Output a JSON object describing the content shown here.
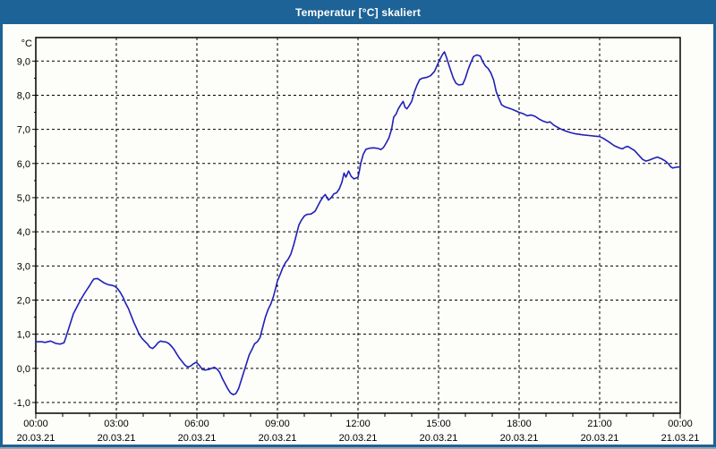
{
  "window": {
    "title": "Temperatur [°C] skaliert",
    "colors": {
      "titlebar": "#1d6397",
      "border": "#1d6397",
      "client_bg": "#fdfdfa",
      "title_text": "#ffffff"
    }
  },
  "chart_data": {
    "type": "line",
    "title": "Temperatur [°C] skaliert",
    "ylabel": "°C",
    "xlabel": "",
    "grid": {
      "style": "dashed",
      "color": "#000000",
      "shown": true
    },
    "legend": {
      "shown": false
    },
    "x_axis": {
      "range_hours": [
        0,
        24
      ],
      "major_step_hours": 3,
      "minor_step_hours": 1,
      "ticks": [
        {
          "hour": 0,
          "time": "00:00",
          "date": "20.03.21"
        },
        {
          "hour": 3,
          "time": "03:00",
          "date": "20.03.21"
        },
        {
          "hour": 6,
          "time": "06:00",
          "date": "20.03.21"
        },
        {
          "hour": 9,
          "time": "09:00",
          "date": "20.03.21"
        },
        {
          "hour": 12,
          "time": "12:00",
          "date": "20.03.21"
        },
        {
          "hour": 15,
          "time": "15:00",
          "date": "20.03.21"
        },
        {
          "hour": 18,
          "time": "18:00",
          "date": "20.03.21"
        },
        {
          "hour": 21,
          "time": "21:00",
          "date": "20.03.21"
        },
        {
          "hour": 24,
          "time": "00:00",
          "date": "21.03.21"
        }
      ]
    },
    "y_axis": {
      "range": [
        -1.31,
        9.69
      ],
      "minor_step": 0.5,
      "ticks": [
        {
          "value": 9,
          "label": "9,0"
        },
        {
          "value": 8,
          "label": "8,0"
        },
        {
          "value": 7,
          "label": "7,0"
        },
        {
          "value": 6,
          "label": "6,0"
        },
        {
          "value": 5,
          "label": "5,0"
        },
        {
          "value": 4,
          "label": "4,0"
        },
        {
          "value": 3,
          "label": "3,0"
        },
        {
          "value": 2,
          "label": "2,0"
        },
        {
          "value": 1,
          "label": "1,0"
        },
        {
          "value": 0,
          "label": "0,0"
        },
        {
          "value": -1,
          "label": "-1,0"
        }
      ]
    },
    "series": [
      {
        "name": "Temperatur [°C]",
        "color": "#2020b8",
        "points": [
          [
            0.0,
            0.78
          ],
          [
            0.2,
            0.78
          ],
          [
            0.35,
            0.76
          ],
          [
            0.55,
            0.8
          ],
          [
            0.75,
            0.73
          ],
          [
            0.9,
            0.71
          ],
          [
            1.05,
            0.75
          ],
          [
            1.1,
            0.86
          ],
          [
            1.2,
            1.1
          ],
          [
            1.3,
            1.35
          ],
          [
            1.4,
            1.6
          ],
          [
            1.5,
            1.75
          ],
          [
            1.6,
            1.9
          ],
          [
            1.7,
            2.05
          ],
          [
            1.8,
            2.18
          ],
          [
            1.9,
            2.3
          ],
          [
            2.0,
            2.42
          ],
          [
            2.1,
            2.55
          ],
          [
            2.17,
            2.62
          ],
          [
            2.3,
            2.63
          ],
          [
            2.4,
            2.58
          ],
          [
            2.55,
            2.5
          ],
          [
            2.7,
            2.45
          ],
          [
            2.85,
            2.43
          ],
          [
            2.95,
            2.4
          ],
          [
            3.05,
            2.33
          ],
          [
            3.15,
            2.22
          ],
          [
            3.25,
            2.08
          ],
          [
            3.35,
            1.9
          ],
          [
            3.45,
            1.75
          ],
          [
            3.55,
            1.55
          ],
          [
            3.65,
            1.35
          ],
          [
            3.75,
            1.18
          ],
          [
            3.85,
            1.0
          ],
          [
            3.95,
            0.88
          ],
          [
            4.05,
            0.8
          ],
          [
            4.15,
            0.72
          ],
          [
            4.25,
            0.62
          ],
          [
            4.35,
            0.58
          ],
          [
            4.45,
            0.65
          ],
          [
            4.55,
            0.75
          ],
          [
            4.65,
            0.8
          ],
          [
            4.75,
            0.78
          ],
          [
            4.85,
            0.77
          ],
          [
            4.95,
            0.73
          ],
          [
            5.05,
            0.65
          ],
          [
            5.15,
            0.55
          ],
          [
            5.25,
            0.42
          ],
          [
            5.35,
            0.3
          ],
          [
            5.45,
            0.2
          ],
          [
            5.55,
            0.1
          ],
          [
            5.65,
            0.04
          ],
          [
            5.75,
            0.06
          ],
          [
            5.85,
            0.12
          ],
          [
            5.95,
            0.17
          ],
          [
            6.0,
            0.16
          ],
          [
            6.1,
            0.08
          ],
          [
            6.2,
            -0.03
          ],
          [
            6.3,
            -0.05
          ],
          [
            6.45,
            -0.03
          ],
          [
            6.55,
            0.0
          ],
          [
            6.65,
            0.03
          ],
          [
            6.75,
            -0.02
          ],
          [
            6.85,
            -0.12
          ],
          [
            6.95,
            -0.3
          ],
          [
            7.05,
            -0.45
          ],
          [
            7.15,
            -0.6
          ],
          [
            7.25,
            -0.72
          ],
          [
            7.35,
            -0.77
          ],
          [
            7.45,
            -0.74
          ],
          [
            7.55,
            -0.6
          ],
          [
            7.65,
            -0.35
          ],
          [
            7.75,
            -0.1
          ],
          [
            7.85,
            0.15
          ],
          [
            7.95,
            0.4
          ],
          [
            8.05,
            0.55
          ],
          [
            8.15,
            0.72
          ],
          [
            8.25,
            0.78
          ],
          [
            8.35,
            0.9
          ],
          [
            8.45,
            1.2
          ],
          [
            8.55,
            1.5
          ],
          [
            8.65,
            1.72
          ],
          [
            8.75,
            1.88
          ],
          [
            8.85,
            2.1
          ],
          [
            8.95,
            2.4
          ],
          [
            9.0,
            2.56
          ],
          [
            9.1,
            2.75
          ],
          [
            9.2,
            2.95
          ],
          [
            9.3,
            3.1
          ],
          [
            9.4,
            3.2
          ],
          [
            9.5,
            3.35
          ],
          [
            9.6,
            3.6
          ],
          [
            9.7,
            3.9
          ],
          [
            9.8,
            4.2
          ],
          [
            9.9,
            4.35
          ],
          [
            10.0,
            4.46
          ],
          [
            10.1,
            4.51
          ],
          [
            10.25,
            4.52
          ],
          [
            10.4,
            4.6
          ],
          [
            10.5,
            4.75
          ],
          [
            10.6,
            4.9
          ],
          [
            10.7,
            5.02
          ],
          [
            10.78,
            5.09
          ],
          [
            10.9,
            4.93
          ],
          [
            11.0,
            5.0
          ],
          [
            11.1,
            5.11
          ],
          [
            11.2,
            5.14
          ],
          [
            11.3,
            5.25
          ],
          [
            11.4,
            5.45
          ],
          [
            11.48,
            5.72
          ],
          [
            11.55,
            5.6
          ],
          [
            11.65,
            5.78
          ],
          [
            11.75,
            5.62
          ],
          [
            11.85,
            5.55
          ],
          [
            11.95,
            5.58
          ],
          [
            12.0,
            5.6
          ],
          [
            12.05,
            5.78
          ],
          [
            12.1,
            6.0
          ],
          [
            12.2,
            6.28
          ],
          [
            12.3,
            6.42
          ],
          [
            12.45,
            6.45
          ],
          [
            12.6,
            6.46
          ],
          [
            12.75,
            6.44
          ],
          [
            12.85,
            6.41
          ],
          [
            12.95,
            6.47
          ],
          [
            13.05,
            6.6
          ],
          [
            13.15,
            6.75
          ],
          [
            13.25,
            7.0
          ],
          [
            13.33,
            7.36
          ],
          [
            13.42,
            7.45
          ],
          [
            13.5,
            7.6
          ],
          [
            13.6,
            7.73
          ],
          [
            13.68,
            7.82
          ],
          [
            13.75,
            7.65
          ],
          [
            13.82,
            7.6
          ],
          [
            13.9,
            7.69
          ],
          [
            14.0,
            7.82
          ],
          [
            14.1,
            8.1
          ],
          [
            14.2,
            8.3
          ],
          [
            14.3,
            8.46
          ],
          [
            14.4,
            8.5
          ],
          [
            14.55,
            8.52
          ],
          [
            14.7,
            8.57
          ],
          [
            14.85,
            8.7
          ],
          [
            14.95,
            8.88
          ],
          [
            15.05,
            9.05
          ],
          [
            15.15,
            9.2
          ],
          [
            15.22,
            9.27
          ],
          [
            15.3,
            9.1
          ],
          [
            15.42,
            8.8
          ],
          [
            15.55,
            8.5
          ],
          [
            15.65,
            8.35
          ],
          [
            15.75,
            8.3
          ],
          [
            15.9,
            8.32
          ],
          [
            16.0,
            8.5
          ],
          [
            16.1,
            8.75
          ],
          [
            16.2,
            8.95
          ],
          [
            16.3,
            9.13
          ],
          [
            16.42,
            9.18
          ],
          [
            16.55,
            9.15
          ],
          [
            16.65,
            8.98
          ],
          [
            16.75,
            8.85
          ],
          [
            16.85,
            8.78
          ],
          [
            16.95,
            8.65
          ],
          [
            17.05,
            8.45
          ],
          [
            17.15,
            8.1
          ],
          [
            17.25,
            7.9
          ],
          [
            17.35,
            7.72
          ],
          [
            17.45,
            7.67
          ],
          [
            17.55,
            7.64
          ],
          [
            17.7,
            7.6
          ],
          [
            17.85,
            7.55
          ],
          [
            18.0,
            7.5
          ],
          [
            18.15,
            7.46
          ],
          [
            18.3,
            7.4
          ],
          [
            18.45,
            7.42
          ],
          [
            18.6,
            7.38
          ],
          [
            18.75,
            7.3
          ],
          [
            18.9,
            7.24
          ],
          [
            19.05,
            7.2
          ],
          [
            19.15,
            7.22
          ],
          [
            19.3,
            7.12
          ],
          [
            19.5,
            7.03
          ],
          [
            19.7,
            6.96
          ],
          [
            19.9,
            6.91
          ],
          [
            20.1,
            6.87
          ],
          [
            20.35,
            6.84
          ],
          [
            20.6,
            6.82
          ],
          [
            20.85,
            6.8
          ],
          [
            21.0,
            6.79
          ],
          [
            21.15,
            6.73
          ],
          [
            21.35,
            6.63
          ],
          [
            21.55,
            6.52
          ],
          [
            21.75,
            6.45
          ],
          [
            21.85,
            6.43
          ],
          [
            21.95,
            6.48
          ],
          [
            22.05,
            6.5
          ],
          [
            22.15,
            6.45
          ],
          [
            22.3,
            6.38
          ],
          [
            22.45,
            6.25
          ],
          [
            22.6,
            6.12
          ],
          [
            22.72,
            6.07
          ],
          [
            22.85,
            6.1
          ],
          [
            23.0,
            6.15
          ],
          [
            23.15,
            6.19
          ],
          [
            23.3,
            6.14
          ],
          [
            23.45,
            6.07
          ],
          [
            23.55,
            6.0
          ],
          [
            23.65,
            5.9
          ],
          [
            23.72,
            5.87
          ],
          [
            23.85,
            5.89
          ],
          [
            24.0,
            5.9
          ]
        ]
      }
    ]
  }
}
